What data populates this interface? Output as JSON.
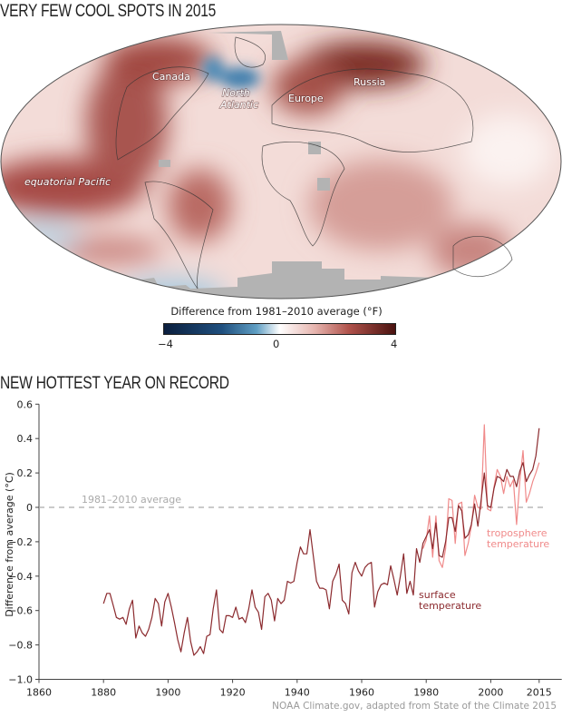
{
  "map": {
    "title": "VERY FEW COOL SPOTS IN 2015",
    "labels": {
      "canada": "Canada",
      "north_atlantic_1": "North",
      "north_atlantic_2": "Atlantic",
      "europe": "Europe",
      "russia": "Russia",
      "equatorial_pacific": "equatorial Pacific"
    },
    "colorbar": {
      "title": "Difference from 1981–2010 average (°F)",
      "min_label": "−4",
      "mid_label": "0",
      "max_label": "4",
      "min": -4,
      "max": 4,
      "colors": {
        "cold": "#0b1f3e",
        "neutral": "#ffffff",
        "warm": "#4a1310"
      }
    },
    "no_data_color": "#b3b3b3"
  },
  "chart_data": {
    "type": "line",
    "title": "NEW HOTTEST YEAR ON RECORD",
    "xlabel": "",
    "ylabel": "Difference from average (°C)",
    "xlim": [
      1860,
      2020
    ],
    "ylim": [
      -1.0,
      0.6
    ],
    "xticks": [
      1860,
      1880,
      1900,
      1920,
      1940,
      1960,
      1980,
      2000,
      2015
    ],
    "yticks": [
      -1.0,
      -0.8,
      -0.6,
      -0.4,
      -0.2,
      0,
      0.2,
      0.4,
      0.6
    ],
    "ytick_labels": [
      "−1.0",
      "−0.8",
      "−0.6",
      "−0.4",
      "−0.2",
      "0",
      "0.2",
      "0.4",
      "0.6"
    ],
    "grid": false,
    "reference_line": {
      "y": 0,
      "label": "1981–2010 average",
      "color": "#aaaaaa",
      "style": "dashed"
    },
    "series": [
      {
        "name_line1": "surface",
        "name_line2": "temperature",
        "color": "#8b2a2e",
        "start_year": 1880,
        "values": [
          -0.56,
          -0.5,
          -0.5,
          -0.57,
          -0.64,
          -0.65,
          -0.64,
          -0.68,
          -0.59,
          -0.54,
          -0.76,
          -0.69,
          -0.73,
          -0.75,
          -0.71,
          -0.64,
          -0.53,
          -0.56,
          -0.69,
          -0.55,
          -0.5,
          -0.58,
          -0.67,
          -0.77,
          -0.84,
          -0.73,
          -0.64,
          -0.78,
          -0.86,
          -0.84,
          -0.81,
          -0.85,
          -0.75,
          -0.74,
          -0.59,
          -0.48,
          -0.71,
          -0.73,
          -0.63,
          -0.63,
          -0.64,
          -0.58,
          -0.65,
          -0.64,
          -0.67,
          -0.59,
          -0.48,
          -0.58,
          -0.61,
          -0.71,
          -0.52,
          -0.5,
          -0.54,
          -0.66,
          -0.53,
          -0.56,
          -0.54,
          -0.43,
          -0.44,
          -0.43,
          -0.32,
          -0.23,
          -0.27,
          -0.27,
          -0.13,
          -0.28,
          -0.43,
          -0.47,
          -0.47,
          -0.48,
          -0.59,
          -0.43,
          -0.39,
          -0.33,
          -0.54,
          -0.56,
          -0.62,
          -0.38,
          -0.32,
          -0.37,
          -0.4,
          -0.35,
          -0.33,
          -0.32,
          -0.58,
          -0.49,
          -0.45,
          -0.44,
          -0.45,
          -0.34,
          -0.42,
          -0.51,
          -0.4,
          -0.27,
          -0.5,
          -0.43,
          -0.51,
          -0.24,
          -0.32,
          -0.21,
          -0.17,
          -0.13,
          -0.24,
          -0.09,
          -0.28,
          -0.29,
          -0.2,
          -0.06,
          -0.06,
          -0.14,
          0.01,
          -0.02,
          -0.18,
          -0.16,
          -0.1,
          0.02,
          -0.11,
          0.04,
          0.2,
          0.01,
          0.0,
          0.11,
          0.18,
          0.17,
          0.15,
          0.22,
          0.18,
          0.18,
          0.12,
          0.21,
          0.26,
          0.15,
          0.19,
          0.22,
          0.3,
          0.46
        ]
      },
      {
        "name_line1": "troposphere",
        "name_line2": "temperature",
        "color": "#f08a8a",
        "start_year": 1979,
        "values": [
          -0.24,
          -0.19,
          -0.05,
          -0.29,
          -0.05,
          -0.31,
          -0.35,
          -0.24,
          0.05,
          0.04,
          -0.21,
          0.02,
          0.03,
          -0.28,
          -0.21,
          -0.11,
          0.07,
          0.0,
          -0.01,
          0.48,
          -0.01,
          -0.02,
          0.12,
          0.22,
          0.18,
          0.08,
          0.18,
          0.12,
          0.16,
          -0.1,
          0.15,
          0.33,
          0.03,
          0.08,
          0.15,
          0.2,
          0.26
        ]
      }
    ]
  },
  "credit": "NOAA Climate.gov, adapted from State of the Climate 2015"
}
